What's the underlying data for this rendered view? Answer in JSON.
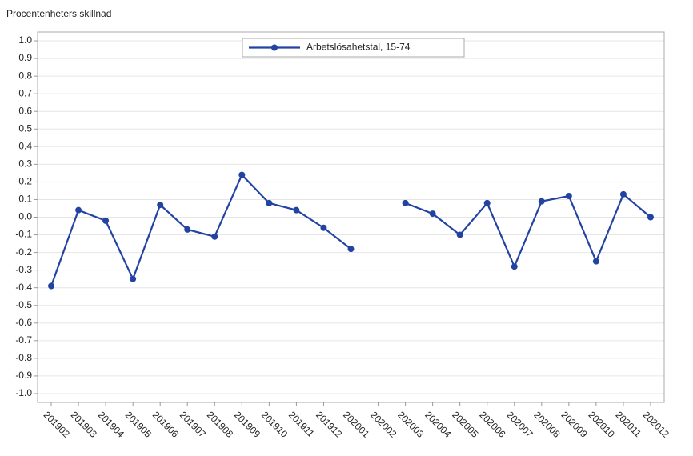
{
  "chart_data": {
    "type": "line",
    "title": "Procentenheters skillnad",
    "categories": [
      "201902",
      "201903",
      "201904",
      "201905",
      "201906",
      "201907",
      "201908",
      "201909",
      "201910",
      "201911",
      "201912",
      "202001",
      "202002",
      "202003",
      "202004",
      "202005",
      "202006",
      "202007",
      "202008",
      "202009",
      "202010",
      "202011",
      "202012"
    ],
    "series": [
      {
        "name": "Arbetslösahetstal, 15-74",
        "color": "#2343a3",
        "values": [
          -0.39,
          0.04,
          -0.02,
          -0.35,
          0.07,
          -0.07,
          -0.11,
          0.24,
          0.08,
          0.04,
          -0.06,
          -0.18,
          null,
          0.08,
          0.02,
          -0.1,
          0.08,
          -0.28,
          0.09,
          0.12,
          -0.25,
          0.13,
          0.0
        ]
      }
    ],
    "ylim": [
      -1.05,
      1.05
    ],
    "yticks": [
      {
        "value": 1,
        "label": "1.0"
      },
      0.9,
      0.8,
      0.7,
      0.6,
      0.5,
      0.4,
      0.3,
      0.2,
      0.1,
      {
        "value": 0,
        "label": "0.0"
      },
      -0.1,
      -0.2,
      -0.3,
      -0.4,
      -0.5,
      -0.6,
      -0.7,
      -0.8,
      -0.9,
      {
        "value": -1,
        "label": "-1.0"
      }
    ],
    "grid": true,
    "legend": "top"
  }
}
